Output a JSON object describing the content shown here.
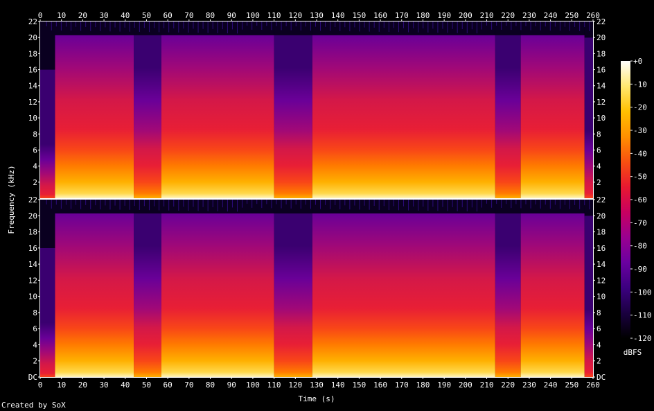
{
  "chart_data": {
    "type": "heatmap",
    "kind": "spectrogram",
    "title": "",
    "xlabel": "Time (s)",
    "ylabel": "Frequency (kHz)",
    "xlim": [
      0,
      260
    ],
    "ylim": [
      0,
      22
    ],
    "x_ticks": [
      0,
      10,
      20,
      30,
      40,
      50,
      60,
      70,
      80,
      90,
      100,
      110,
      120,
      130,
      140,
      150,
      160,
      170,
      180,
      190,
      200,
      210,
      220,
      230,
      240,
      250,
      260
    ],
    "y_tick_labels_top": [
      "22",
      "20",
      "18",
      "16",
      "14",
      "12",
      "10",
      "8",
      "6",
      "4",
      "2"
    ],
    "y_tick_labels_bottom": [
      "22",
      "20",
      "18",
      "16",
      "14",
      "12",
      "10",
      "8",
      "6",
      "4",
      "2",
      "DC"
    ],
    "y_tick_values": [
      22,
      20,
      18,
      16,
      14,
      12,
      10,
      8,
      6,
      4,
      2,
      0
    ],
    "channels": 2,
    "colorbar": {
      "label": "dBFS",
      "tick_labels": [
        "+0",
        "-10",
        "-20",
        "-30",
        "-40",
        "-50",
        "-60",
        "-70",
        "-80",
        "-90",
        "-100",
        "-110",
        "-120"
      ],
      "range_db": [
        -120,
        0
      ],
      "colors": [
        "#000000",
        "#1a0040",
        "#3c0080",
        "#6a00a0",
        "#9a0090",
        "#c80060",
        "#e81830",
        "#f85010",
        "#ff9000",
        "#ffc000",
        "#ffe870",
        "#ffffff"
      ]
    },
    "segments": [
      {
        "t": [
          0,
          7
        ],
        "cutoff_khz": 16,
        "level": "quiet"
      },
      {
        "t": [
          7,
          44
        ],
        "cutoff_khz": 20.3,
        "level": "loud"
      },
      {
        "t": [
          44,
          57
        ],
        "cutoff_khz": 20.3,
        "level": "medium"
      },
      {
        "t": [
          57,
          110
        ],
        "cutoff_khz": 20.3,
        "level": "loud"
      },
      {
        "t": [
          110,
          128
        ],
        "cutoff_khz": 20.3,
        "level": "medium"
      },
      {
        "t": [
          128,
          214
        ],
        "cutoff_khz": 20.3,
        "level": "loud"
      },
      {
        "t": [
          214,
          226
        ],
        "cutoff_khz": 20.3,
        "level": "medium"
      },
      {
        "t": [
          226,
          256
        ],
        "cutoff_khz": 20.3,
        "level": "loud"
      },
      {
        "t": [
          256,
          260
        ],
        "cutoff_khz": 20,
        "level": "quiet"
      }
    ]
  },
  "footer": {
    "credit": "Created by SoX"
  }
}
